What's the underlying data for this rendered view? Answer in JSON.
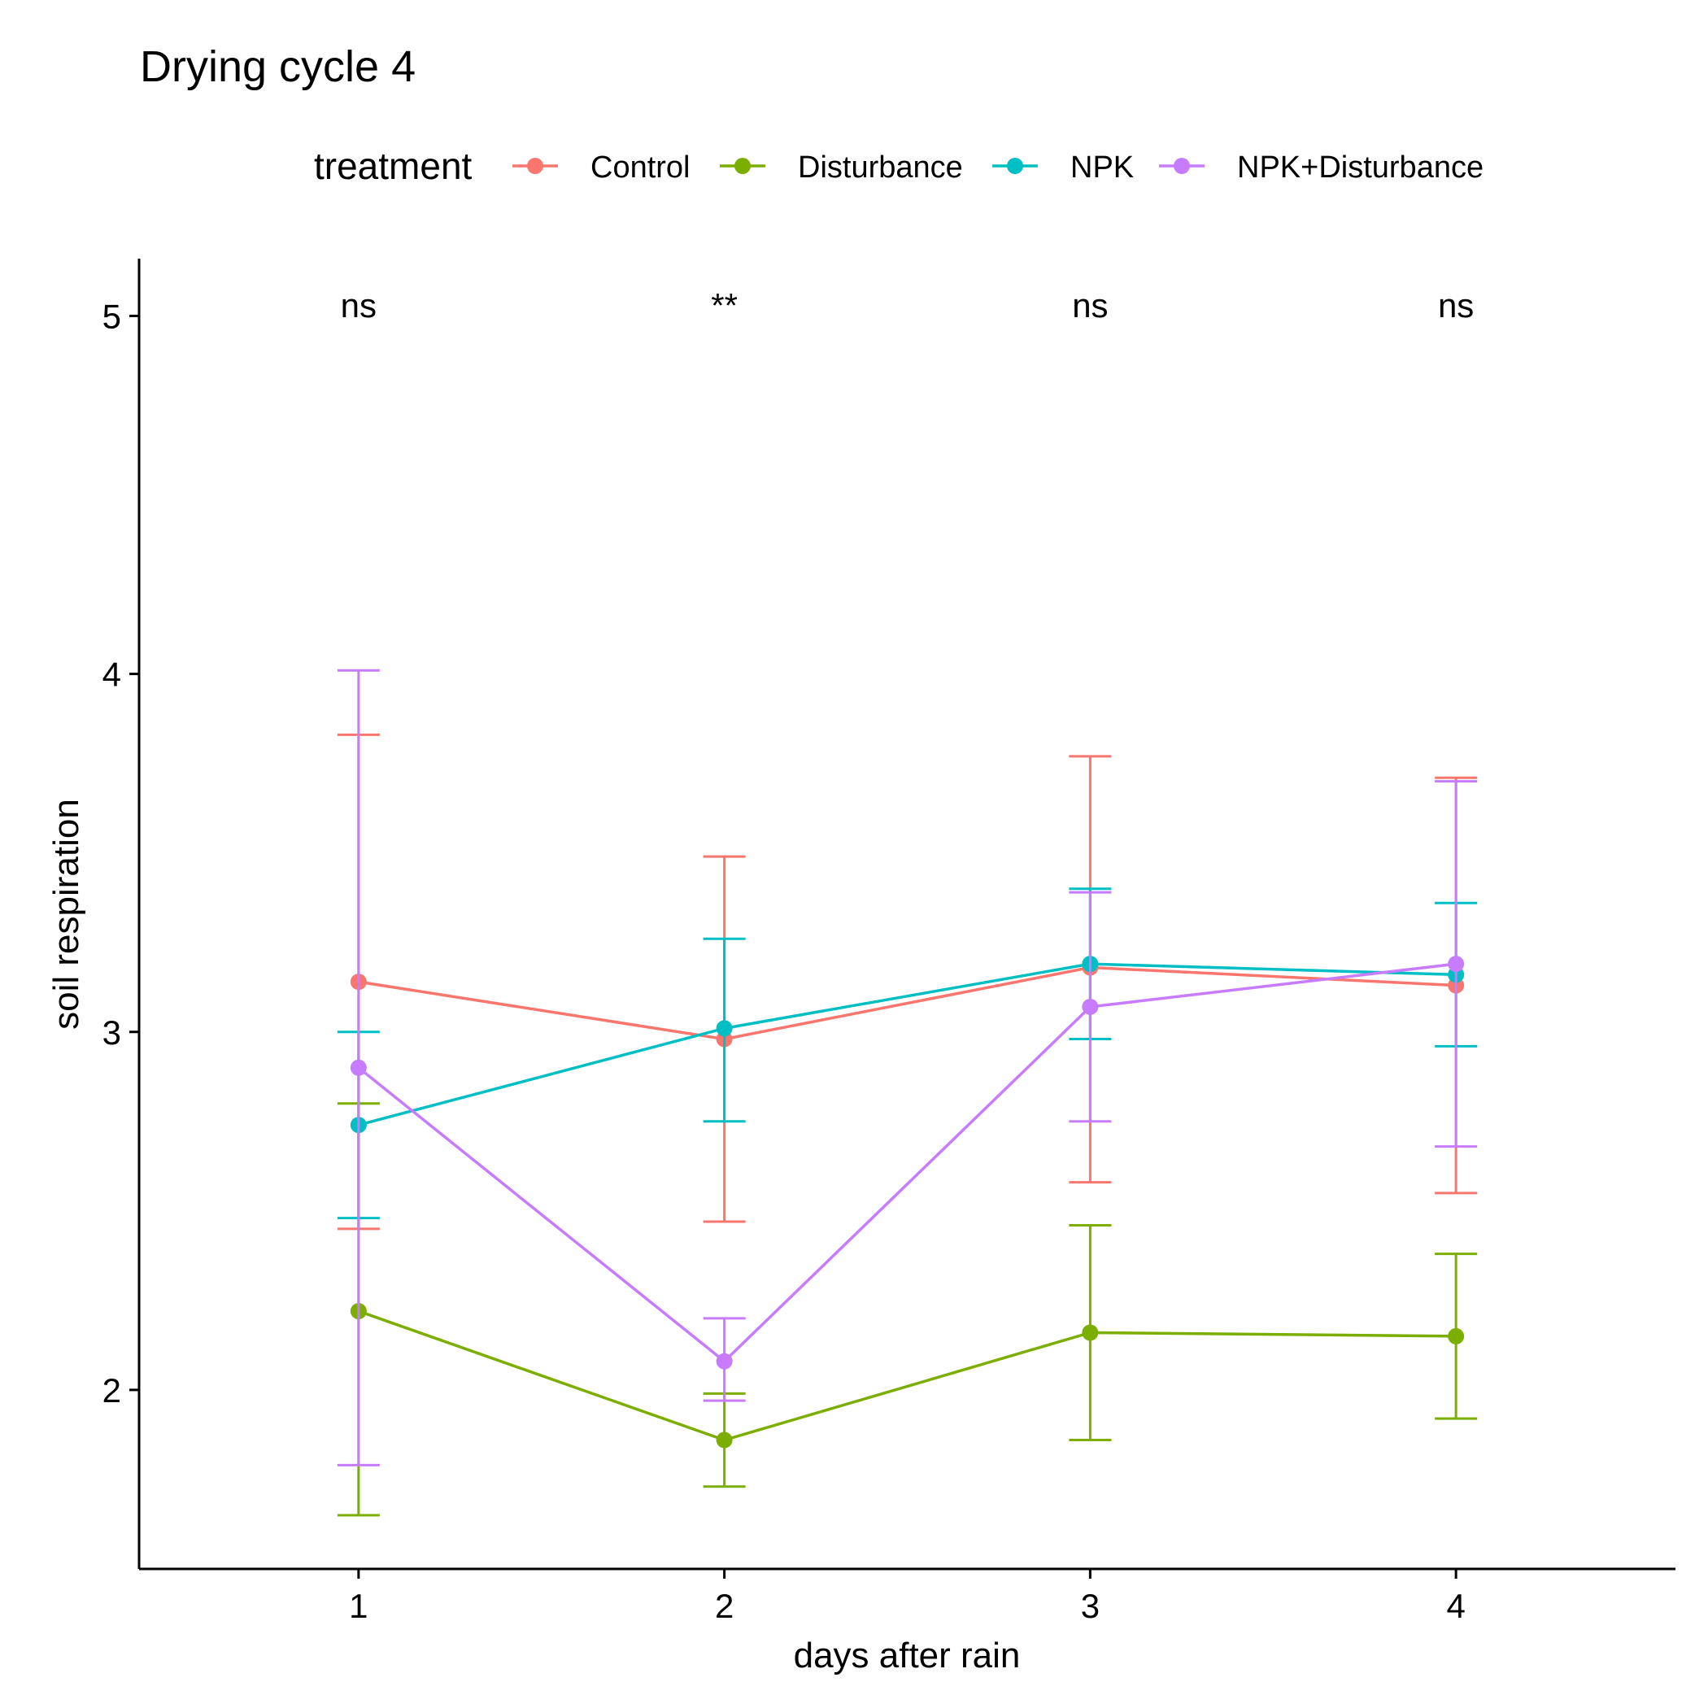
{
  "chart_data": {
    "type": "line",
    "title": "Drying cycle 4",
    "xlabel": "days after rain",
    "ylabel": "soil respiration",
    "x": [
      1,
      2,
      3,
      4
    ],
    "x_tick_labels": [
      "1",
      "2",
      "3",
      "4"
    ],
    "xlim": [
      0.4,
      4.6
    ],
    "ylim": [
      1.5,
      5.16
    ],
    "y_ticks": [
      2,
      3,
      4,
      5
    ],
    "y_tick_labels": [
      "2",
      "3",
      "4",
      "5"
    ],
    "grid": false,
    "legend": {
      "title": "treatment",
      "position": "top"
    },
    "annotations": [
      "ns",
      "**",
      "ns",
      "ns"
    ],
    "annotation_y": 5.03,
    "series": [
      {
        "name": "Control",
        "color": "#F8766D",
        "values": [
          3.14,
          2.98,
          3.18,
          3.13
        ],
        "error_low": [
          2.45,
          2.47,
          2.58,
          2.55
        ],
        "error_high": [
          3.83,
          3.49,
          3.77,
          3.71
        ]
      },
      {
        "name": "Disturbance",
        "color": "#7CAE00",
        "values": [
          2.22,
          1.86,
          2.16,
          2.15
        ],
        "error_low": [
          1.65,
          1.73,
          1.86,
          1.92
        ],
        "error_high": [
          2.8,
          1.99,
          2.46,
          2.38
        ]
      },
      {
        "name": "NPK",
        "color": "#00BFC4",
        "values": [
          2.74,
          3.01,
          3.19,
          3.16
        ],
        "error_low": [
          2.48,
          2.75,
          2.98,
          2.96
        ],
        "error_high": [
          3.0,
          3.26,
          3.4,
          3.36
        ]
      },
      {
        "name": "NPK+Disturbance",
        "color": "#C77CFF",
        "values": [
          2.9,
          2.08,
          3.07,
          3.19
        ],
        "error_low": [
          1.79,
          1.97,
          2.75,
          2.68
        ],
        "error_high": [
          4.01,
          2.2,
          3.39,
          3.7
        ]
      }
    ]
  }
}
